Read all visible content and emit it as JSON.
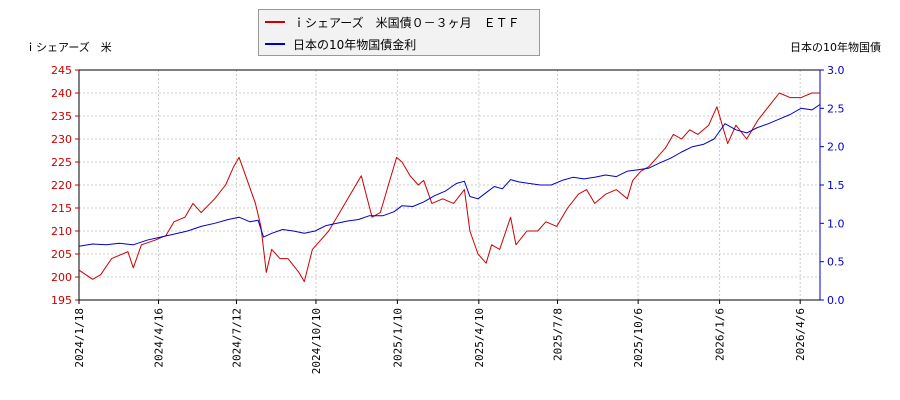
{
  "chart_data": {
    "type": "line",
    "left_axis_title": "ｉシェアーズ　米",
    "right_axis_title": "日本の10年物国債",
    "y_left": {
      "min": 195,
      "max": 245,
      "ticks": [
        "195",
        "200",
        "205",
        "210",
        "215",
        "220",
        "225",
        "230",
        "235",
        "240",
        "245"
      ]
    },
    "y_right": {
      "min": 0.0,
      "max": 3.0,
      "ticks": [
        "0.0",
        "0.5",
        "1.0",
        "1.5",
        "2.0",
        "2.5",
        "3.0"
      ]
    },
    "x_ticks": [
      "2024/1/18",
      "2024/4/16",
      "2024/7/12",
      "2024/10/10",
      "2025/1/10",
      "2025/4/10",
      "2025/7/8",
      "2025/10/6",
      "2026/1/6",
      "2026/4/6"
    ],
    "x_tick_months": [
      0,
      2.93,
      5.8,
      8.73,
      11.73,
      14.73,
      17.63,
      20.6,
      23.6,
      26.57
    ],
    "x_end_month": 27.3,
    "grid": true,
    "legend_position": "top-center",
    "series": [
      {
        "name": "ｉシェアーズ　米国債０－３ヶ月　ＥＴＦ",
        "axis": "left",
        "color": "#cc0000",
        "points": [
          [
            0,
            201.5
          ],
          [
            0.5,
            199.5
          ],
          [
            0.8,
            200.5
          ],
          [
            1.2,
            204
          ],
          [
            1.8,
            205.5
          ],
          [
            2.0,
            202
          ],
          [
            2.3,
            207
          ],
          [
            2.8,
            208
          ],
          [
            3.2,
            209
          ],
          [
            3.5,
            212
          ],
          [
            3.9,
            213
          ],
          [
            4.2,
            216
          ],
          [
            4.5,
            214
          ],
          [
            5.0,
            217
          ],
          [
            5.4,
            220
          ],
          [
            5.7,
            224
          ],
          [
            5.9,
            226
          ],
          [
            6.2,
            221
          ],
          [
            6.5,
            216
          ],
          [
            6.7,
            211
          ],
          [
            6.9,
            201
          ],
          [
            7.1,
            206
          ],
          [
            7.4,
            204
          ],
          [
            7.7,
            204
          ],
          [
            8.1,
            201
          ],
          [
            8.3,
            199
          ],
          [
            8.6,
            206
          ],
          [
            8.9,
            208
          ],
          [
            9.2,
            210
          ],
          [
            9.6,
            214
          ],
          [
            10.0,
            218
          ],
          [
            10.4,
            222
          ],
          [
            10.8,
            213
          ],
          [
            11.1,
            214
          ],
          [
            11.4,
            220
          ],
          [
            11.7,
            226
          ],
          [
            11.9,
            225
          ],
          [
            12.2,
            222
          ],
          [
            12.5,
            220
          ],
          [
            12.7,
            221
          ],
          [
            13.0,
            216
          ],
          [
            13.4,
            217
          ],
          [
            13.8,
            216
          ],
          [
            14.2,
            219
          ],
          [
            14.4,
            210
          ],
          [
            14.7,
            205
          ],
          [
            15.0,
            203
          ],
          [
            15.2,
            207
          ],
          [
            15.5,
            206
          ],
          [
            15.9,
            213
          ],
          [
            16.1,
            207
          ],
          [
            16.5,
            210
          ],
          [
            16.9,
            210
          ],
          [
            17.2,
            212
          ],
          [
            17.6,
            211
          ],
          [
            18.0,
            215
          ],
          [
            18.4,
            218
          ],
          [
            18.7,
            219
          ],
          [
            19.0,
            216
          ],
          [
            19.4,
            218
          ],
          [
            19.8,
            219
          ],
          [
            20.2,
            217
          ],
          [
            20.4,
            221
          ],
          [
            20.7,
            223
          ],
          [
            21.0,
            224
          ],
          [
            21.3,
            226
          ],
          [
            21.6,
            228
          ],
          [
            21.9,
            231
          ],
          [
            22.2,
            230
          ],
          [
            22.5,
            232
          ],
          [
            22.8,
            231
          ],
          [
            23.2,
            233
          ],
          [
            23.5,
            237
          ],
          [
            23.9,
            229
          ],
          [
            24.2,
            233
          ],
          [
            24.6,
            230
          ],
          [
            25.0,
            234
          ],
          [
            25.4,
            237
          ],
          [
            25.8,
            240
          ],
          [
            26.2,
            239
          ],
          [
            26.6,
            239
          ],
          [
            27.0,
            240
          ],
          [
            27.3,
            240
          ]
        ]
      },
      {
        "name": "日本の10年物国債金利",
        "axis": "right",
        "color": "#0000cc",
        "points": [
          [
            0,
            0.7
          ],
          [
            0.5,
            0.73
          ],
          [
            1.0,
            0.72
          ],
          [
            1.5,
            0.74
          ],
          [
            2.0,
            0.72
          ],
          [
            2.5,
            0.78
          ],
          [
            3.0,
            0.82
          ],
          [
            3.5,
            0.86
          ],
          [
            4.0,
            0.9
          ],
          [
            4.5,
            0.96
          ],
          [
            5.0,
            1.0
          ],
          [
            5.5,
            1.05
          ],
          [
            5.9,
            1.08
          ],
          [
            6.3,
            1.02
          ],
          [
            6.6,
            1.04
          ],
          [
            6.8,
            0.82
          ],
          [
            7.1,
            0.87
          ],
          [
            7.5,
            0.92
          ],
          [
            7.9,
            0.9
          ],
          [
            8.3,
            0.87
          ],
          [
            8.7,
            0.9
          ],
          [
            9.1,
            0.97
          ],
          [
            9.5,
            1.0
          ],
          [
            9.9,
            1.03
          ],
          [
            10.3,
            1.05
          ],
          [
            10.7,
            1.1
          ],
          [
            11.2,
            1.1
          ],
          [
            11.6,
            1.15
          ],
          [
            11.9,
            1.23
          ],
          [
            12.3,
            1.22
          ],
          [
            12.7,
            1.28
          ],
          [
            13.1,
            1.36
          ],
          [
            13.5,
            1.42
          ],
          [
            13.9,
            1.52
          ],
          [
            14.2,
            1.55
          ],
          [
            14.4,
            1.35
          ],
          [
            14.7,
            1.32
          ],
          [
            15.0,
            1.4
          ],
          [
            15.3,
            1.48
          ],
          [
            15.6,
            1.45
          ],
          [
            15.9,
            1.57
          ],
          [
            16.2,
            1.54
          ],
          [
            16.6,
            1.52
          ],
          [
            17.0,
            1.5
          ],
          [
            17.4,
            1.5
          ],
          [
            17.8,
            1.56
          ],
          [
            18.2,
            1.6
          ],
          [
            18.6,
            1.58
          ],
          [
            19.0,
            1.6
          ],
          [
            19.4,
            1.63
          ],
          [
            19.8,
            1.61
          ],
          [
            20.2,
            1.68
          ],
          [
            20.6,
            1.7
          ],
          [
            21.0,
            1.72
          ],
          [
            21.4,
            1.79
          ],
          [
            21.8,
            1.85
          ],
          [
            22.2,
            1.93
          ],
          [
            22.6,
            2.0
          ],
          [
            23.0,
            2.03
          ],
          [
            23.4,
            2.1
          ],
          [
            23.8,
            2.3
          ],
          [
            24.2,
            2.22
          ],
          [
            24.6,
            2.18
          ],
          [
            25.0,
            2.25
          ],
          [
            25.4,
            2.3
          ],
          [
            25.8,
            2.36
          ],
          [
            26.2,
            2.42
          ],
          [
            26.6,
            2.5
          ],
          [
            27.0,
            2.48
          ],
          [
            27.3,
            2.55
          ]
        ]
      }
    ]
  },
  "legend": {
    "items": [
      {
        "label": "ｉシェアーズ　米国債０－３ヶ月　ＥＴＦ",
        "color": "#cc0000"
      },
      {
        "label": "日本の10年物国債金利",
        "color": "#0000cc"
      }
    ]
  }
}
